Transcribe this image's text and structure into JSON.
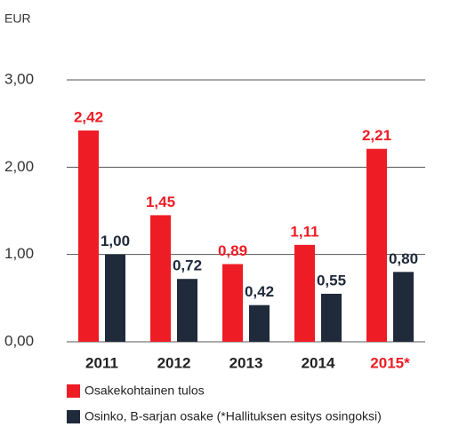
{
  "chart_data": {
    "type": "bar",
    "y_axis_label": "EUR",
    "categories": [
      "2011",
      "2012",
      "2013",
      "2014",
      "2015*"
    ],
    "category_label_colors": [
      "#222222",
      "#222222",
      "#222222",
      "#222222",
      "#ee1c25"
    ],
    "series": [
      {
        "name": "Osakekohtainen tulos",
        "color": "#ee1c25",
        "values": [
          2.42,
          1.45,
          0.89,
          1.11,
          2.21
        ],
        "value_labels": [
          "2,42",
          "1,45",
          "0,89",
          "1,11",
          "2,21"
        ]
      },
      {
        "name": "Osinko, B-sarjan osake (*Hallituksen esitys osingoksi)",
        "color": "#1f2a3a",
        "values": [
          1.0,
          0.72,
          0.42,
          0.55,
          0.8
        ],
        "value_labels": [
          "1,00",
          "0,72",
          "0,42",
          "0,55",
          "0,80"
        ]
      }
    ],
    "ylim": [
      0,
      3
    ],
    "yticks": [
      {
        "value": 0,
        "label": "0,00"
      },
      {
        "value": 1,
        "label": "1,00"
      },
      {
        "value": 2,
        "label": "2,00"
      },
      {
        "value": 3,
        "label": "3,00"
      }
    ],
    "grid": true
  }
}
